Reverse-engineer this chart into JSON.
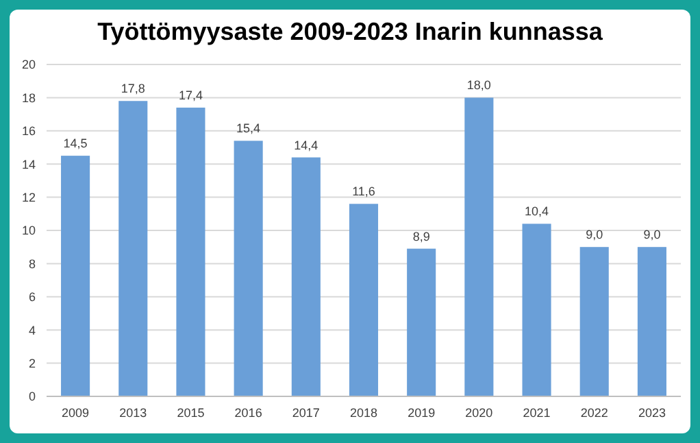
{
  "chart_data": {
    "type": "bar",
    "title": "Työttömyysaste 2009-2023 Inarin kunnassa",
    "categories": [
      "2009",
      "2013",
      "2015",
      "2016",
      "2017",
      "2018",
      "2019",
      "2020",
      "2021",
      "2022",
      "2023"
    ],
    "values": [
      14.5,
      17.8,
      17.4,
      15.4,
      14.4,
      11.6,
      8.9,
      18.0,
      10.4,
      9.0,
      9.0
    ],
    "value_labels": [
      "14,5",
      "17,8",
      "17,4",
      "15,4",
      "14,4",
      "11,6",
      "8,9",
      "18,0",
      "10,4",
      "9,0",
      "9,0"
    ],
    "color": "#6a9fd8",
    "ylim": [
      0,
      20
    ],
    "yticks": [
      0,
      2,
      4,
      6,
      8,
      10,
      12,
      14,
      16,
      18,
      20
    ],
    "grid": "y"
  }
}
